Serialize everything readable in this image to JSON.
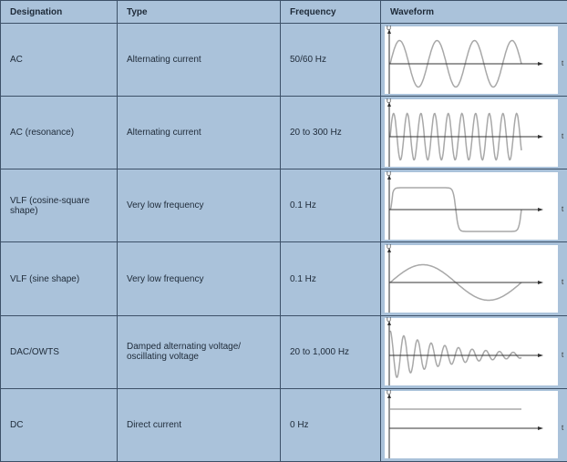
{
  "headers": [
    "Designation",
    "Type",
    "Frequency",
    "Waveform"
  ],
  "axis": {
    "y": "U",
    "x": "t"
  },
  "rows": [
    {
      "designation": "AC",
      "type": "Alternating current",
      "frequency": "50/60 Hz",
      "waveform": "sine-3-cycles"
    },
    {
      "designation": "AC (resonance)",
      "type": "Alternating current",
      "frequency": "20 to 300 Hz",
      "waveform": "sine-9-cycles"
    },
    {
      "designation": "VLF (cosine-square shape)",
      "type": "Very low frequency",
      "frequency": "0.1 Hz",
      "waveform": "cosine-square"
    },
    {
      "designation": "VLF (sine shape)",
      "type": "Very low frequency",
      "frequency": "0.1 Hz",
      "waveform": "sine-1-cycle"
    },
    {
      "designation": "DAC/OWTS",
      "type": "Damped alternating voltage/ oscillating voltage",
      "frequency": "20 to 1,000 Hz",
      "waveform": "damped-sine"
    },
    {
      "designation": "DC",
      "type": "Direct current",
      "frequency": "0 Hz",
      "waveform": "dc-constant"
    }
  ],
  "colors": {
    "background": "#aac2da",
    "border": "#3d5168",
    "wave": "#a8a8a8"
  }
}
